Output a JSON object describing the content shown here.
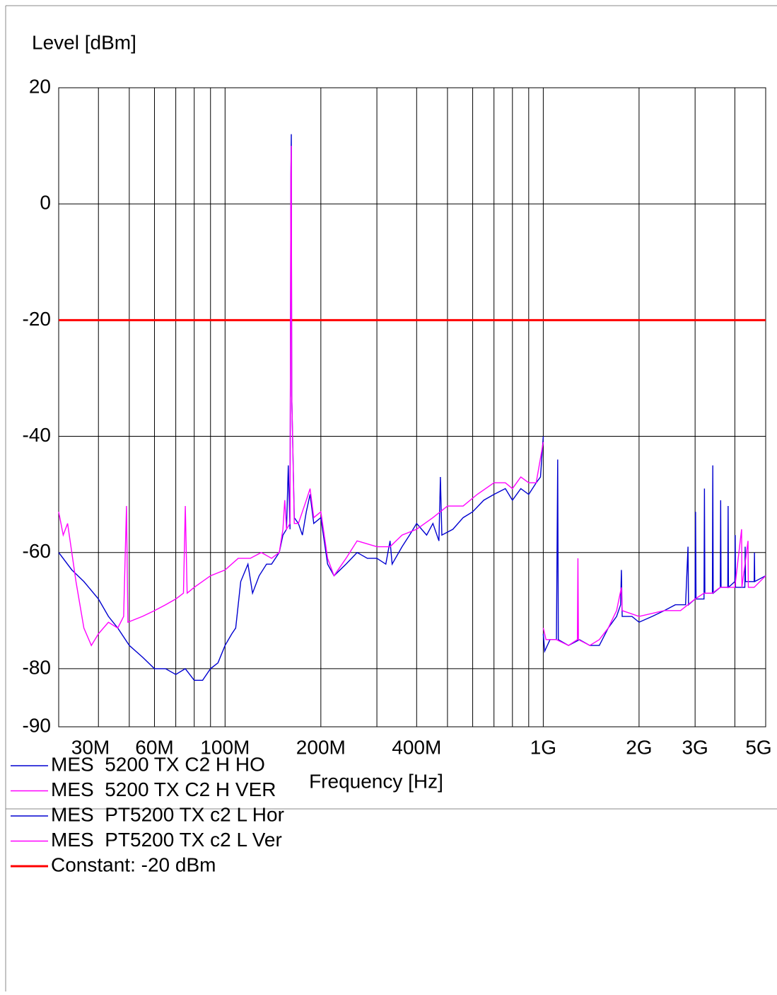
{
  "chart_data": {
    "type": "line",
    "y_label": "Level [dBm]",
    "x_label": "Frequency [Hz]",
    "log_x": true,
    "grid": true,
    "xlim": [
      30000000.0,
      5000000000.0
    ],
    "ylim": [
      -90,
      20
    ],
    "yticks": [
      20,
      0,
      -20,
      -40,
      -60,
      -80,
      -90
    ],
    "xticks": [
      {
        "value": 30000000.0,
        "label": "30M"
      },
      {
        "value": 60000000.0,
        "label": "60M"
      },
      {
        "value": 100000000.0,
        "label": "100M"
      },
      {
        "value": 200000000.0,
        "label": "200M"
      },
      {
        "value": 400000000.0,
        "label": "400M"
      },
      {
        "value": 1000000000.0,
        "label": "1G"
      },
      {
        "value": 2000000000.0,
        "label": "2G"
      },
      {
        "value": 3000000000.0,
        "label": "3G"
      },
      {
        "value": 5000000000.0,
        "label": "5G"
      }
    ],
    "x_grid_lines": [
      40000000.0,
      50000000.0,
      60000000.0,
      70000000.0,
      80000000.0,
      90000000.0,
      100000000.0,
      200000000.0,
      300000000.0,
      400000000.0,
      500000000.0,
      600000000.0,
      700000000.0,
      800000000.0,
      900000000.0,
      1000000000.0,
      2000000000.0,
      3000000000.0,
      4000000000.0
    ],
    "series": [
      {
        "name": "MES  5200 TX C2 H HO",
        "color": "#0000d0",
        "x": [
          1000000000.0,
          1010000000.0,
          1050000000.0,
          1100000000.0,
          1110000000.0,
          1115000000.0,
          1200000000.0,
          1300000000.0,
          1400000000.0,
          1500000000.0,
          1600000000.0,
          1700000000.0,
          1750000000.0,
          1760000000.0,
          1770000000.0,
          1900000000.0,
          2000000000.0,
          2200000000.0,
          2400000000.0,
          2600000000.0,
          2800000000.0,
          2850000000.0,
          2860000000.0,
          3000000000.0,
          3010000000.0,
          3020000000.0,
          3200000000.0,
          3210000000.0,
          3220000000.0,
          3400000000.0,
          3410000000.0,
          3420000000.0,
          3600000000.0,
          3610000000.0,
          3620000000.0,
          3800000000.0,
          3810000000.0,
          3820000000.0,
          4000000000.0,
          4010000000.0,
          4020000000.0,
          4300000000.0,
          4310000000.0,
          4320000000.0,
          4600000000.0,
          4610000000.0,
          4620000000.0,
          5000000000.0
        ],
        "values": [
          -74,
          -77,
          -75,
          -75,
          -44,
          -75,
          -76,
          -75,
          -76,
          -76,
          -73,
          -71,
          -69,
          -63,
          -71,
          -71,
          -72,
          -71,
          -70,
          -69,
          -69,
          -59,
          -69,
          -68,
          -53,
          -68,
          -68,
          -49,
          -67,
          -67,
          -45,
          -67,
          -66,
          -51,
          -66,
          -66,
          -52,
          -66,
          -65,
          -57,
          -66,
          -66,
          -59,
          -65,
          -65,
          -60,
          -65,
          -64
        ]
      },
      {
        "name": "MES  5200 TX C2 H VER",
        "color": "#ff00ff",
        "x": [
          1000000000.0,
          1020000000.0,
          1100000000.0,
          1200000000.0,
          1280000000.0,
          1285000000.0,
          1290000000.0,
          1400000000.0,
          1500000000.0,
          1600000000.0,
          1700000000.0,
          1760000000.0,
          1770000000.0,
          2000000000.0,
          2400000000.0,
          2700000000.0,
          3000000000.0,
          3200000000.0,
          3400000000.0,
          3600000000.0,
          3800000000.0,
          4000000000.0,
          4200000000.0,
          4210000000.0,
          4400000000.0,
          4410000000.0,
          4600000000.0,
          5000000000.0
        ],
        "values": [
          -73,
          -75,
          -75,
          -76,
          -75,
          -61,
          -75,
          -76,
          -75,
          -73,
          -70,
          -66,
          -70,
          -71,
          -70,
          -70,
          -68,
          -67,
          -67,
          -66,
          -66,
          -66,
          -56,
          -66,
          -58,
          -66,
          -66,
          -64
        ]
      },
      {
        "name": "MES  PT5200 TX c2 L Hor",
        "color": "#0000d0",
        "x": [
          30000000.0,
          33000000.0,
          36000000.0,
          40000000.0,
          43000000.0,
          46000000.0,
          50000000.0,
          55000000.0,
          60000000.0,
          65000000.0,
          70000000.0,
          75000000.0,
          80000000.0,
          85000000.0,
          90000000.0,
          95000000.0,
          100000000.0,
          105000000.0,
          108000000.0,
          112000000.0,
          118000000.0,
          122000000.0,
          128000000.0,
          135000000.0,
          140000000.0,
          148000000.0,
          152000000.0,
          156000000.0,
          158000000.0,
          160000000.0,
          161000000.0,
          161500000.0,
          162000000.0,
          163000000.0,
          165000000.0,
          170000000.0,
          175000000.0,
          180000000.0,
          185000000.0,
          190000000.0,
          200000000.0,
          210000000.0,
          220000000.0,
          240000000.0,
          260000000.0,
          280000000.0,
          300000000.0,
          320000000.0,
          330000000.0,
          335000000.0,
          360000000.0,
          380000000.0,
          400000000.0,
          430000000.0,
          450000000.0,
          470000000.0,
          475000000.0,
          480000000.0,
          520000000.0,
          560000000.0,
          600000000.0,
          650000000.0,
          700000000.0,
          760000000.0,
          800000000.0,
          850000000.0,
          900000000.0,
          950000000.0,
          980000000.0,
          1000000000.0
        ],
        "values": [
          -60,
          -63,
          -65,
          -68,
          -71,
          -73,
          -76,
          -78,
          -80,
          -80,
          -81,
          -80,
          -82,
          -82,
          -80,
          -79,
          -76,
          -74,
          -73,
          -65,
          -62,
          -67,
          -64,
          -62,
          -62,
          -60,
          -57,
          -56,
          -45,
          -56,
          5,
          12,
          -33,
          -40,
          -54,
          -55,
          -57,
          -53,
          -50,
          -55,
          -54,
          -62,
          -64,
          -62,
          -60,
          -61,
          -61,
          -62,
          -58,
          -62,
          -59,
          -57,
          -55,
          -57,
          -55,
          -58,
          -47,
          -57,
          -56,
          -54,
          -53,
          -51,
          -50,
          -49,
          -51,
          -49,
          -50,
          -48,
          -47,
          -40
        ]
      },
      {
        "name": "MES  PT5200 TX c2 L Ver",
        "color": "#ff00ff",
        "x": [
          30000000.0,
          31000000.0,
          32000000.0,
          34000000.0,
          36000000.0,
          38000000.0,
          40000000.0,
          43000000.0,
          46000000.0,
          48000000.0,
          49000000.0,
          49500000.0,
          55000000.0,
          60000000.0,
          65000000.0,
          70000000.0,
          74000000.0,
          75000000.0,
          76000000.0,
          80000000.0,
          90000000.0,
          100000000.0,
          110000000.0,
          120000000.0,
          130000000.0,
          140000000.0,
          148000000.0,
          152000000.0,
          154000000.0,
          156000000.0,
          160000000.0,
          161000000.0,
          161500000.0,
          162000000.0,
          163000000.0,
          165000000.0,
          170000000.0,
          180000000.0,
          185000000.0,
          190000000.0,
          200000000.0,
          210000000.0,
          220000000.0,
          240000000.0,
          260000000.0,
          300000000.0,
          330000000.0,
          360000000.0,
          400000000.0,
          450000000.0,
          500000000.0,
          560000000.0,
          620000000.0,
          700000000.0,
          760000000.0,
          800000000.0,
          850000000.0,
          900000000.0,
          950000000.0,
          1000000000.0
        ],
        "values": [
          -53,
          -57,
          -55,
          -65,
          -73,
          -76,
          -74,
          -72,
          -73,
          -71,
          -52,
          -72,
          -71,
          -70,
          -69,
          -68,
          -67,
          -52,
          -67,
          -66,
          -64,
          -63,
          -61,
          -61,
          -60,
          -61,
          -60,
          -56,
          -51,
          -56,
          -55,
          5,
          10,
          -33,
          -40,
          -55,
          -55,
          -51,
          -49,
          -54,
          -53,
          -61,
          -64,
          -61,
          -58,
          -59,
          -59,
          -57,
          -56,
          -54,
          -52,
          -52,
          -50,
          -48,
          -48,
          -49,
          -47,
          -48,
          -48,
          -41
        ]
      },
      {
        "name": "Constant: -20 dBm",
        "color": "#ff0000",
        "x": [
          30000000.0,
          5000000000.0
        ],
        "values": [
          -20,
          -20
        ]
      }
    ]
  }
}
